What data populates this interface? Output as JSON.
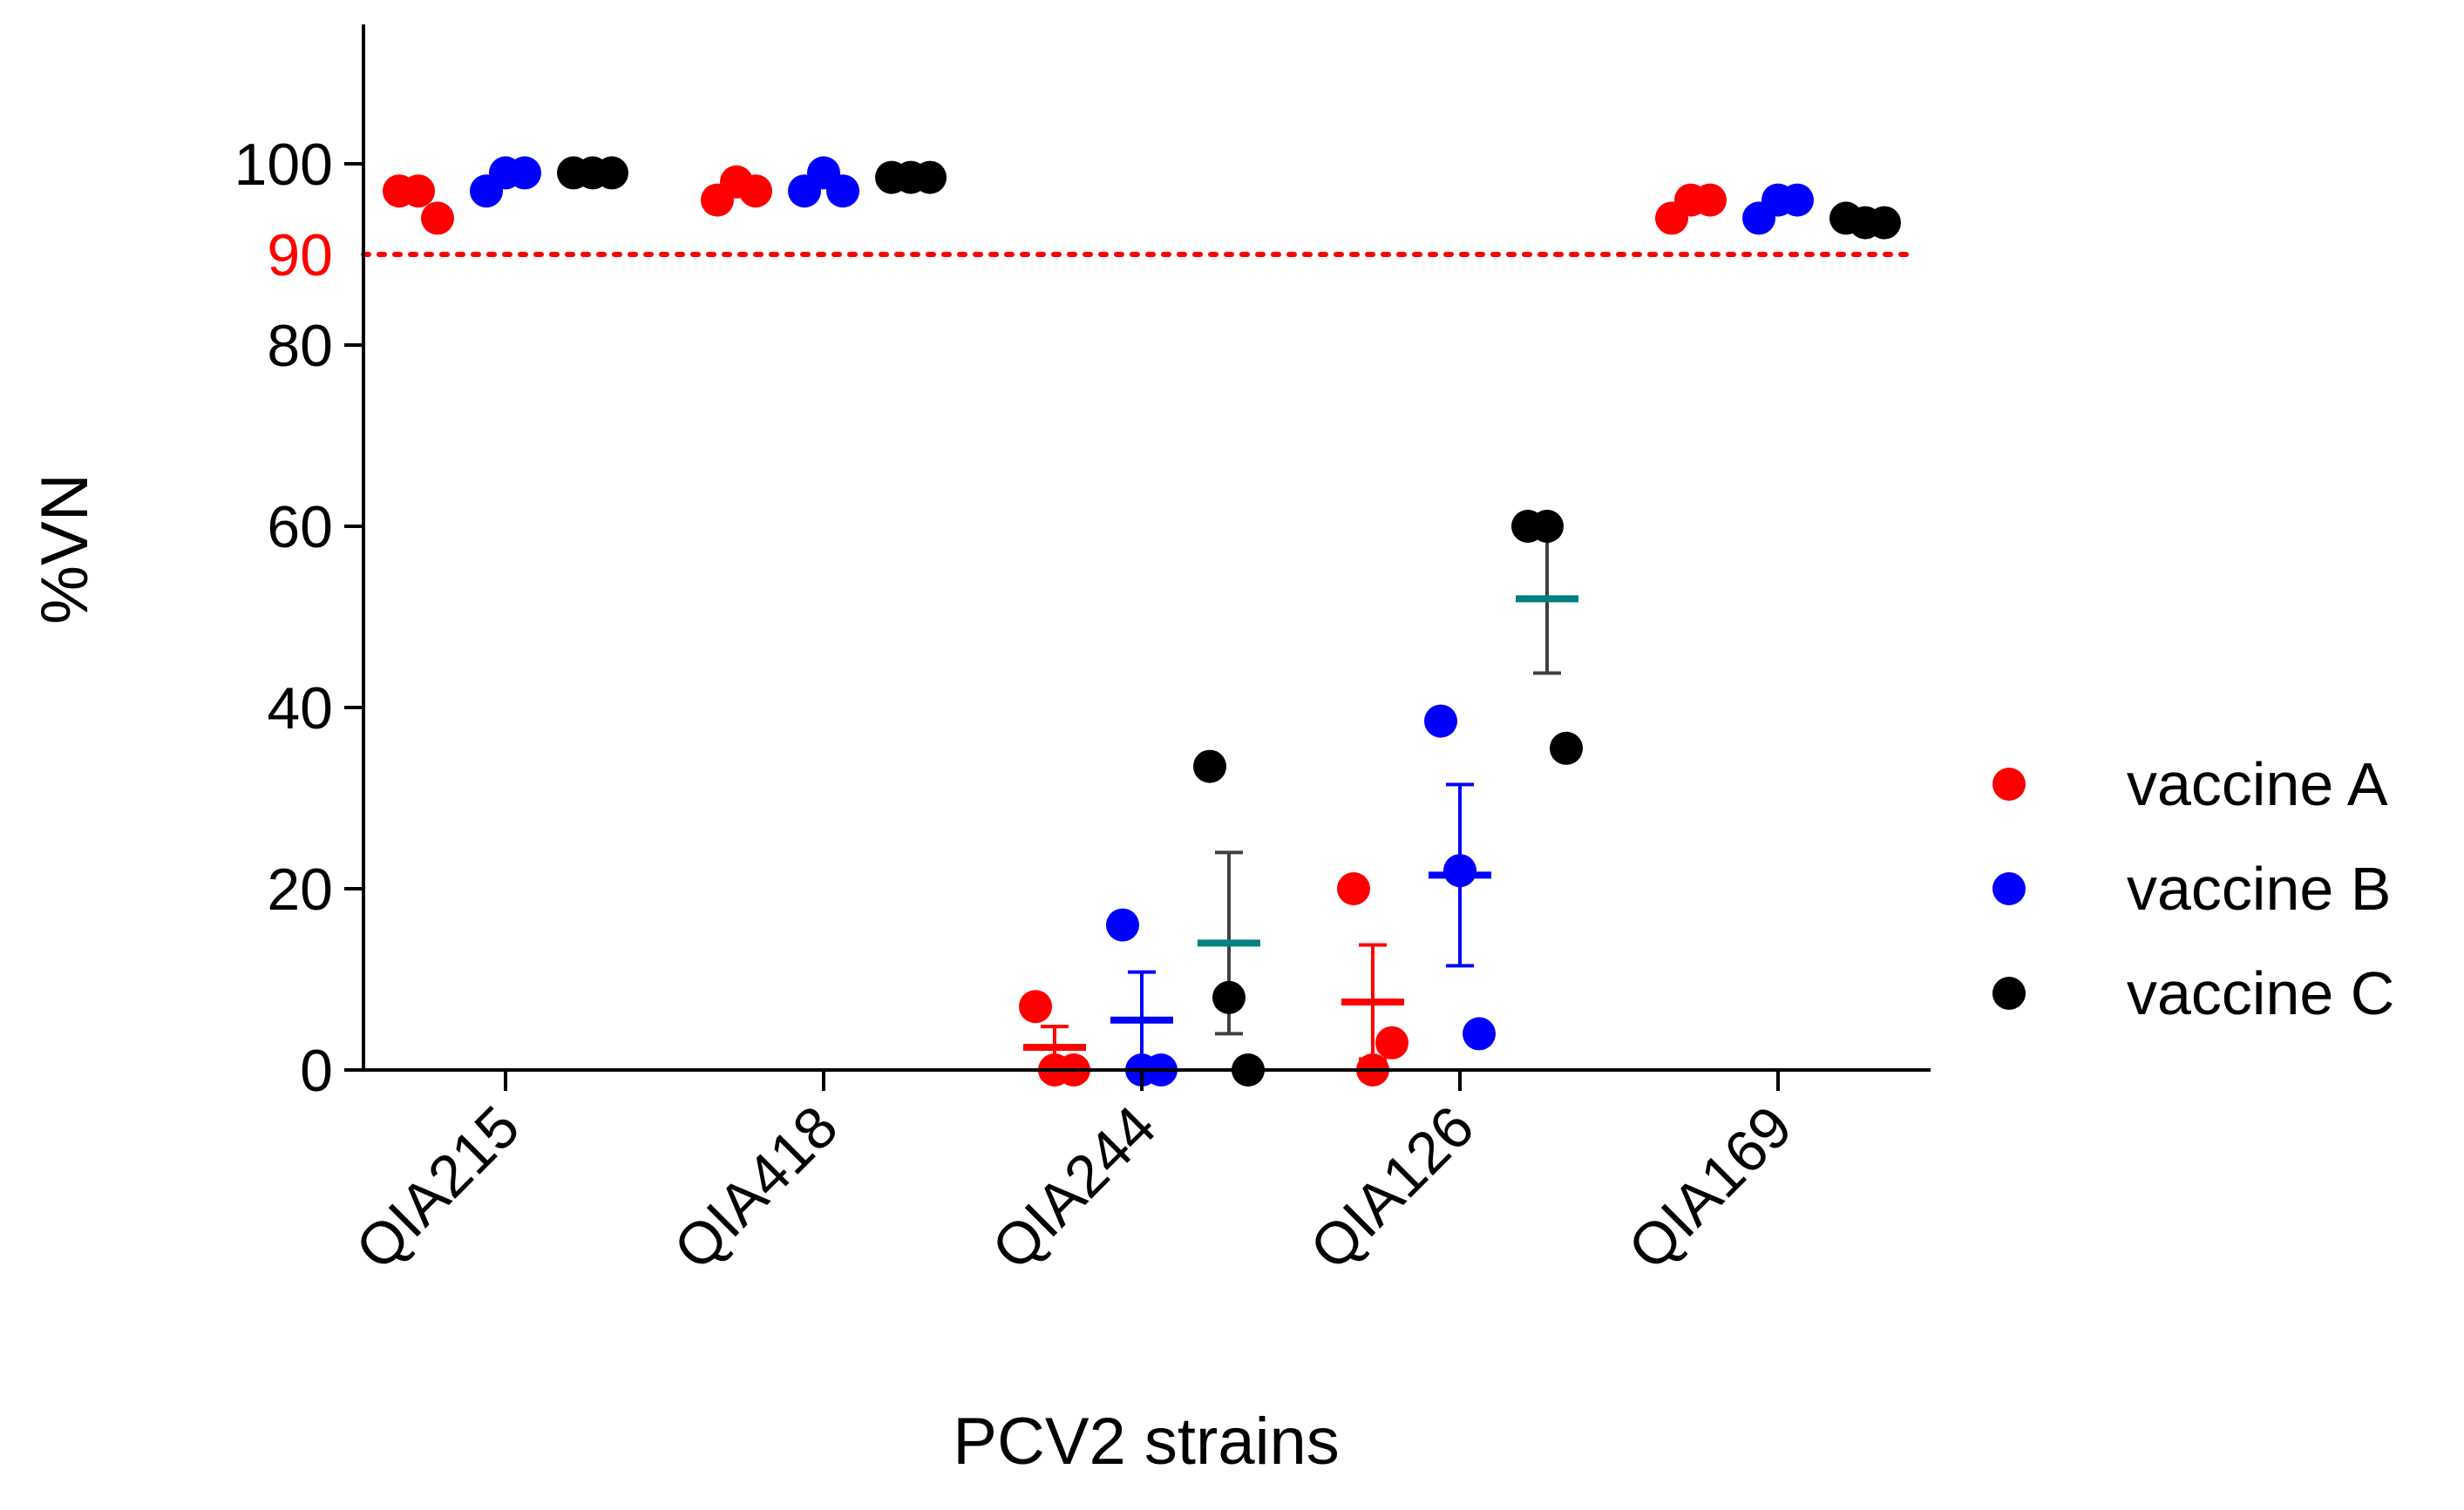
{
  "chart_data": {
    "type": "scatter",
    "xlabel": "PCV2 strains",
    "ylabel": "%VN",
    "ylim": [
      0,
      115
    ],
    "yticks": [
      0,
      20,
      40,
      60,
      80,
      100
    ],
    "categories": [
      "QIA215",
      "QIA418",
      "QIA244",
      "QIA126",
      "QIA169"
    ],
    "threshold": {
      "value": 90,
      "label": "90",
      "color": "#ff0000",
      "style": "dotted"
    },
    "series": [
      {
        "name": "vaccine A",
        "color": "#ff0000",
        "points": [
          [
            97,
            97,
            94
          ],
          [
            96,
            98,
            97
          ],
          [
            7,
            0,
            0
          ],
          [
            20,
            0,
            3
          ],
          [
            94,
            96,
            96
          ]
        ],
        "mean": [
          null,
          null,
          2.5,
          7.5,
          null
        ],
        "err": [
          null,
          null,
          2.3,
          6.3,
          null
        ]
      },
      {
        "name": "vaccine B",
        "color": "#0000ff",
        "points": [
          [
            97,
            99,
            99
          ],
          [
            97,
            99,
            97
          ],
          [
            16,
            0,
            0
          ],
          [
            38.5,
            22,
            4
          ],
          [
            94,
            96,
            96
          ]
        ],
        "mean": [
          null,
          null,
          5.5,
          21.5,
          null
        ],
        "err": [
          null,
          null,
          5.3,
          10,
          null
        ]
      },
      {
        "name": "vaccine C",
        "color": "#000000",
        "points": [
          [
            99,
            99,
            99
          ],
          [
            98.5,
            98.5,
            98.5
          ],
          [
            33.5,
            8,
            0
          ],
          [
            60,
            60,
            35.5
          ],
          [
            94,
            93.5,
            93.5
          ]
        ],
        "mean": [
          null,
          null,
          14,
          52,
          null
        ],
        "err": [
          null,
          null,
          10,
          8.2,
          null
        ],
        "mean_color": "#008080",
        "err_color": "#404040"
      }
    ]
  }
}
